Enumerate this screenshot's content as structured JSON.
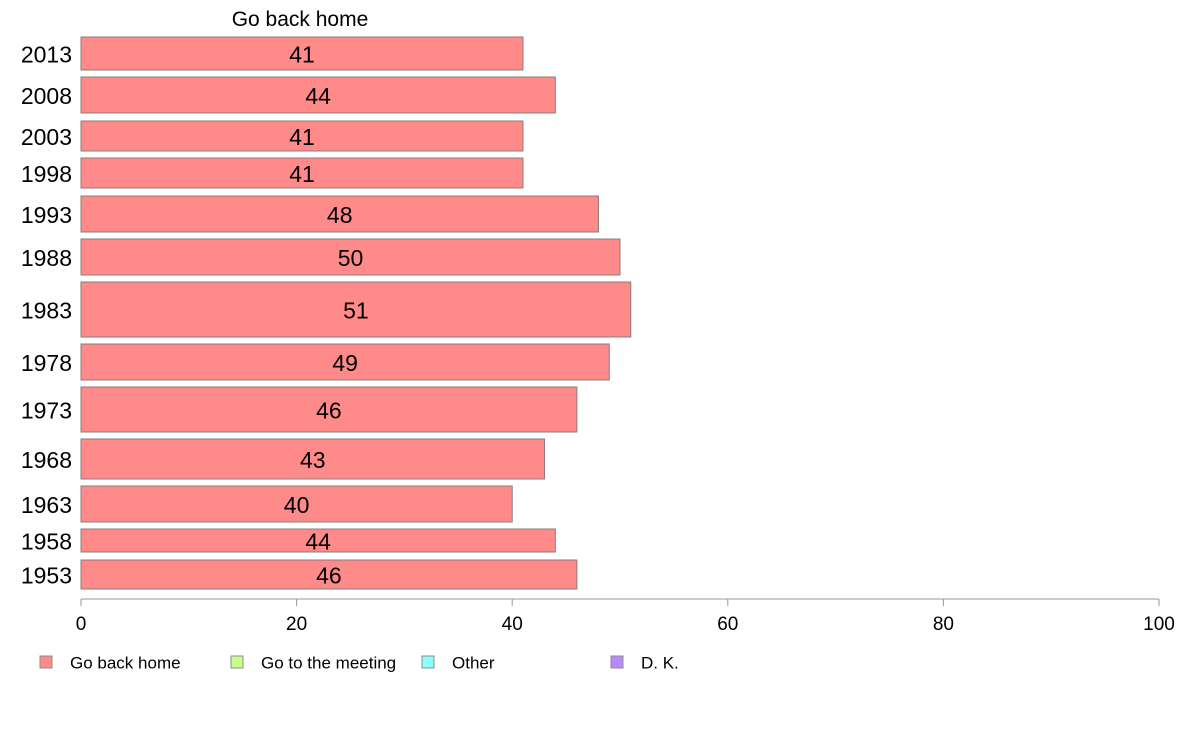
{
  "chart_data": {
    "type": "bar",
    "orientation": "horizontal",
    "title": "Go back home",
    "xlabel": "",
    "ylabel": "",
    "xlim": [
      0,
      100
    ],
    "xticks": [
      0,
      20,
      40,
      60,
      80,
      100
    ],
    "categories": [
      "2013",
      "2008",
      "2003",
      "1998",
      "1993",
      "1988",
      "1983",
      "1978",
      "1973",
      "1968",
      "1963",
      "1958",
      "1953"
    ],
    "series": [
      {
        "name": "Go back home",
        "color": "#ff8a8a",
        "values": [
          41,
          44,
          41,
          41,
          48,
          50,
          51,
          49,
          46,
          43,
          40,
          44,
          46
        ]
      }
    ],
    "legend": {
      "placement": "bottom",
      "items": [
        {
          "label": "Go back home",
          "color": "#ff8a8a"
        },
        {
          "label": "Go to the meeting",
          "color": "#c8ff8a"
        },
        {
          "label": "Other",
          "color": "#8affff"
        },
        {
          "label": "D. K.",
          "color": "#b88aff"
        }
      ]
    },
    "grid": false
  }
}
